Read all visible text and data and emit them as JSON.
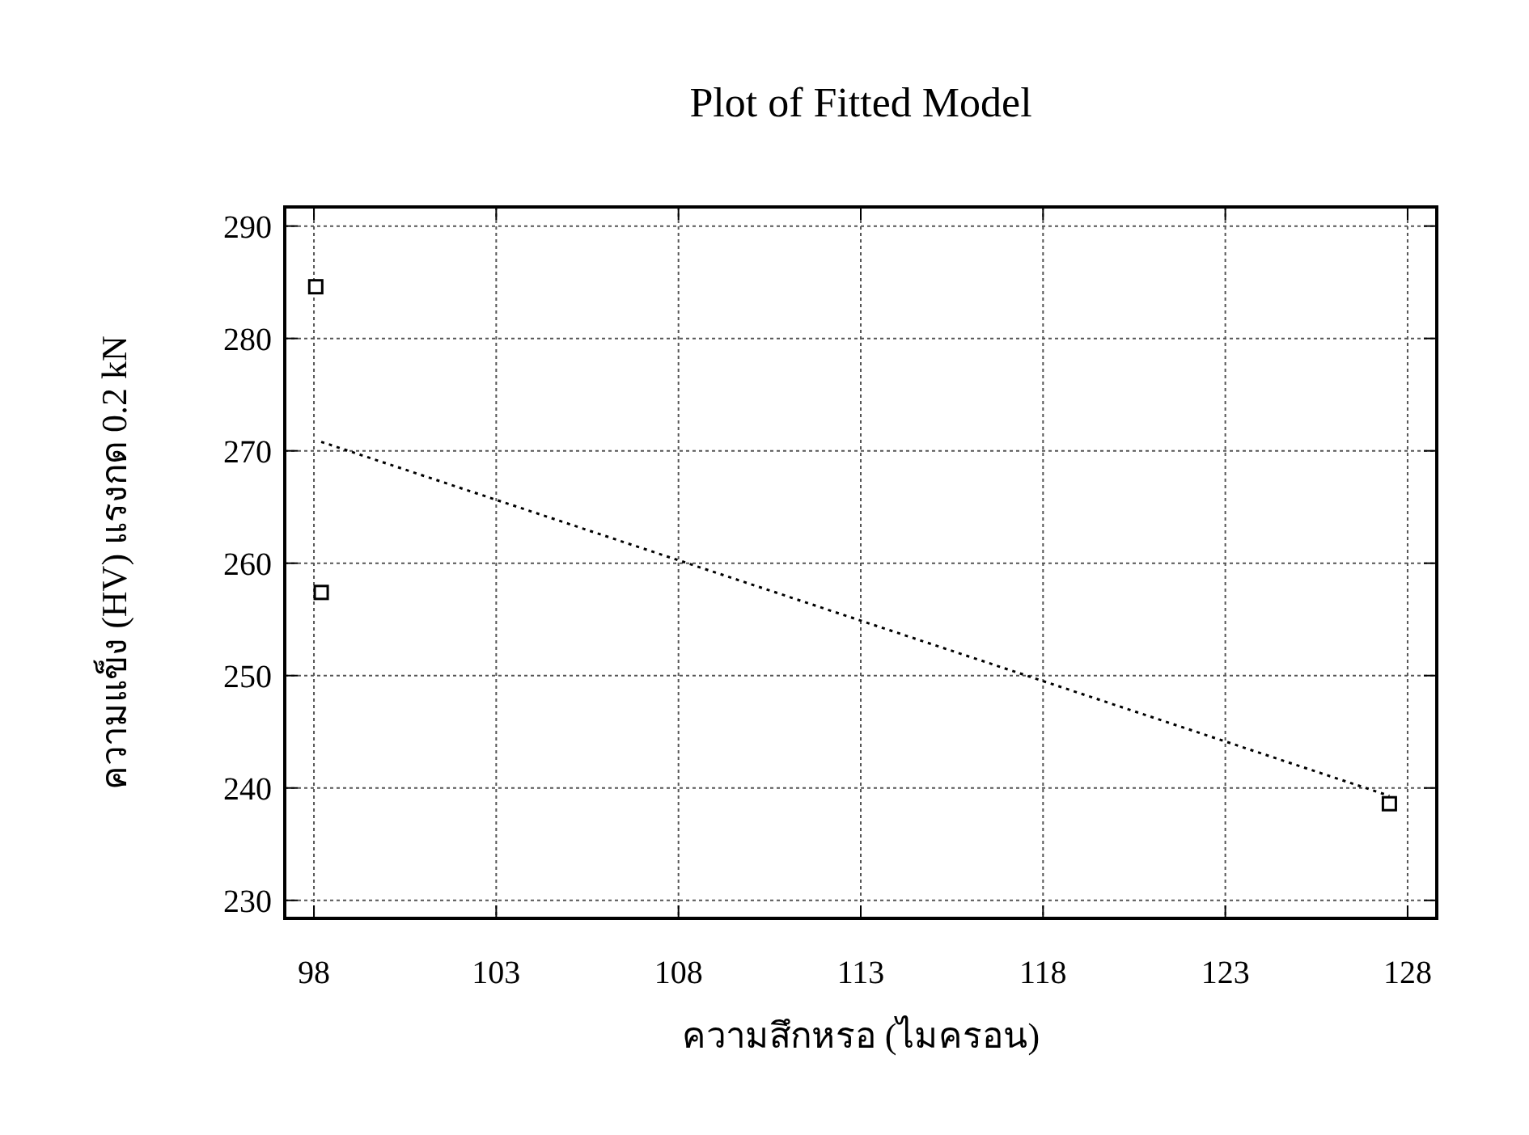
{
  "chart_data": {
    "type": "scatter",
    "title": "Plot of Fitted Model",
    "xlabel": "ความสึกหรอ (ไมครอน)",
    "ylabel": "ความแข็ง (HV) แรงกด 0.2 kN",
    "xlim": [
      97.2,
      128.8
    ],
    "ylim": [
      228.4,
      291.7
    ],
    "xticks": [
      98,
      103,
      108,
      113,
      118,
      123,
      128
    ],
    "yticks": [
      230,
      240,
      250,
      260,
      270,
      280,
      290
    ],
    "grid": true,
    "series": [
      {
        "type": "scatter",
        "color": "#000000",
        "marker": "square",
        "x": [
          98.05,
          98.2,
          127.5
        ],
        "values": [
          284.6,
          257.4,
          238.6
        ]
      },
      {
        "type": "line",
        "color": "#000000",
        "line_style": "dotted",
        "marker": "none",
        "x": [
          98.2,
          127.5
        ],
        "values": [
          270.8,
          239.3
        ]
      }
    ]
  }
}
